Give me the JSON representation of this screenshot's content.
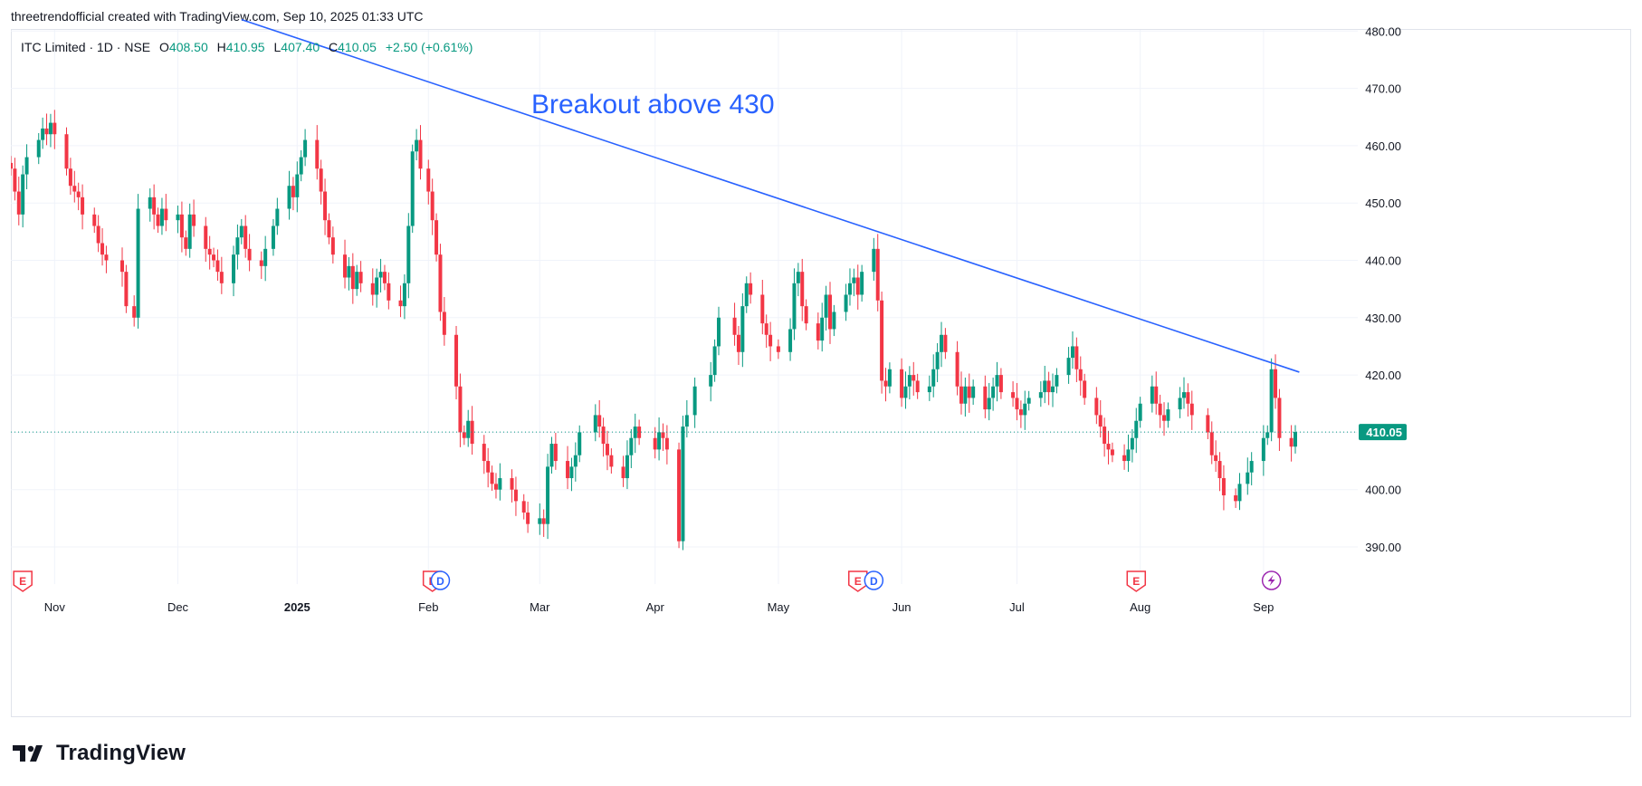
{
  "attribution": "threetrendofficial created with TradingView.com, Sep 10, 2025 01:33 UTC",
  "legend": {
    "symbol": "ITC Limited · 1D · NSE",
    "open_label": "O",
    "open": "408.50",
    "high_label": "H",
    "high": "410.95",
    "low_label": "L",
    "low": "407.40",
    "close_label": "C",
    "close": "410.05",
    "change": "+2.50 (+0.61%)"
  },
  "annotation": "Breakout above 430",
  "price_badge": "410.05",
  "logo_text": "TradingView",
  "colors": {
    "up": "#089981",
    "down": "#f23645",
    "trendline": "#2962ff",
    "text": "#131722",
    "grid": "#f0f3fa",
    "earnings": "#f23645",
    "dividend": "#2962ff",
    "split": "#9c27b0"
  },
  "chart_data": {
    "type": "candlestick",
    "ylim": [
      385,
      481
    ],
    "y_ticks": [
      "390.00",
      "400.00",
      "410.00",
      "420.00",
      "430.00",
      "440.00",
      "450.00",
      "460.00",
      "470.00",
      "480.00"
    ],
    "x_tick_labels": [
      {
        "label": "Nov",
        "date": "2024-11-01"
      },
      {
        "label": "Dec",
        "date": "2024-12-02"
      },
      {
        "label": "2025",
        "date": "2025-01-01",
        "bold": true
      },
      {
        "label": "Feb",
        "date": "2025-02-03"
      },
      {
        "label": "Mar",
        "date": "2025-03-03"
      },
      {
        "label": "Apr",
        "date": "2025-04-01"
      },
      {
        "label": "May",
        "date": "2025-05-02"
      },
      {
        "label": "Jun",
        "date": "2025-06-02"
      },
      {
        "label": "Jul",
        "date": "2025-07-01"
      },
      {
        "label": "Aug",
        "date": "2025-08-01"
      },
      {
        "label": "Sep",
        "date": "2025-09-01"
      }
    ],
    "close_series": [
      [
        "2024-10-21",
        456
      ],
      [
        "2024-10-22",
        452
      ],
      [
        "2024-10-23",
        448
      ],
      [
        "2024-10-24",
        455
      ],
      [
        "2024-10-25",
        458
      ],
      [
        "2024-10-28",
        461
      ],
      [
        "2024-10-29",
        463
      ],
      [
        "2024-10-30",
        462
      ],
      [
        "2024-10-31",
        464
      ],
      [
        "2024-11-01",
        462
      ],
      [
        "2024-11-04",
        456
      ],
      [
        "2024-11-05",
        453
      ],
      [
        "2024-11-06",
        452
      ],
      [
        "2024-11-07",
        451
      ],
      [
        "2024-11-08",
        448
      ],
      [
        "2024-11-11",
        446
      ],
      [
        "2024-11-12",
        443
      ],
      [
        "2024-11-13",
        441
      ],
      [
        "2024-11-14",
        440
      ],
      [
        "2024-11-18",
        438
      ],
      [
        "2024-11-19",
        432
      ],
      [
        "2024-11-21",
        430
      ],
      [
        "2024-11-22",
        449
      ],
      [
        "2024-11-25",
        451
      ],
      [
        "2024-11-26",
        448
      ],
      [
        "2024-11-27",
        446
      ],
      [
        "2024-11-28",
        449
      ],
      [
        "2024-11-29",
        447
      ],
      [
        "2024-12-02",
        448
      ],
      [
        "2024-12-03",
        444
      ],
      [
        "2024-12-04",
        442
      ],
      [
        "2024-12-05",
        448
      ],
      [
        "2024-12-06",
        446
      ],
      [
        "2024-12-09",
        442
      ],
      [
        "2024-12-10",
        441
      ],
      [
        "2024-12-11",
        440
      ],
      [
        "2024-12-12",
        438
      ],
      [
        "2024-12-13",
        436
      ],
      [
        "2024-12-16",
        441
      ],
      [
        "2024-12-17",
        444
      ],
      [
        "2024-12-18",
        446
      ],
      [
        "2024-12-19",
        442
      ],
      [
        "2024-12-20",
        440
      ],
      [
        "2024-12-23",
        439
      ],
      [
        "2024-12-24",
        442
      ],
      [
        "2024-12-26",
        446
      ],
      [
        "2024-12-27",
        449
      ],
      [
        "2024-12-30",
        453
      ],
      [
        "2024-12-31",
        451
      ],
      [
        "2025-01-01",
        455
      ],
      [
        "2025-01-02",
        458
      ],
      [
        "2025-01-03",
        461
      ],
      [
        "2025-01-06",
        456
      ],
      [
        "2025-01-07",
        452
      ],
      [
        "2025-01-08",
        447
      ],
      [
        "2025-01-09",
        444
      ],
      [
        "2025-01-10",
        441
      ],
      [
        "2025-01-13",
        437
      ],
      [
        "2025-01-14",
        439
      ],
      [
        "2025-01-15",
        435
      ],
      [
        "2025-01-16",
        438
      ],
      [
        "2025-01-17",
        436
      ],
      [
        "2025-01-20",
        434
      ],
      [
        "2025-01-21",
        437
      ],
      [
        "2025-01-22",
        438
      ],
      [
        "2025-01-23",
        436
      ],
      [
        "2025-01-24",
        433
      ],
      [
        "2025-01-27",
        432
      ],
      [
        "2025-01-28",
        436
      ],
      [
        "2025-01-29",
        446
      ],
      [
        "2025-01-30",
        459
      ],
      [
        "2025-01-31",
        461
      ],
      [
        "2025-02-01",
        456
      ],
      [
        "2025-02-03",
        452
      ],
      [
        "2025-02-04",
        447
      ],
      [
        "2025-02-05",
        441
      ],
      [
        "2025-02-06",
        431
      ],
      [
        "2025-02-07",
        427
      ],
      [
        "2025-02-10",
        418
      ],
      [
        "2025-02-11",
        410
      ],
      [
        "2025-02-12",
        409
      ],
      [
        "2025-02-13",
        412
      ],
      [
        "2025-02-14",
        408
      ],
      [
        "2025-02-17",
        405
      ],
      [
        "2025-02-18",
        403
      ],
      [
        "2025-02-19",
        401
      ],
      [
        "2025-02-20",
        400
      ],
      [
        "2025-02-21",
        402
      ],
      [
        "2025-02-24",
        400
      ],
      [
        "2025-02-25",
        398
      ],
      [
        "2025-02-27",
        396
      ],
      [
        "2025-02-28",
        394
      ],
      [
        "2025-03-03",
        395
      ],
      [
        "2025-03-04",
        394
      ],
      [
        "2025-03-05",
        404
      ],
      [
        "2025-03-06",
        408
      ],
      [
        "2025-03-07",
        405
      ],
      [
        "2025-03-10",
        402
      ],
      [
        "2025-03-11",
        404
      ],
      [
        "2025-03-12",
        406
      ],
      [
        "2025-03-13",
        410
      ],
      [
        "2025-03-17",
        413
      ],
      [
        "2025-03-18",
        411
      ],
      [
        "2025-03-19",
        408
      ],
      [
        "2025-03-20",
        406
      ],
      [
        "2025-03-21",
        404
      ],
      [
        "2025-03-24",
        402
      ],
      [
        "2025-03-25",
        406
      ],
      [
        "2025-03-26",
        409
      ],
      [
        "2025-03-27",
        411
      ],
      [
        "2025-03-28",
        409
      ],
      [
        "2025-04-01",
        407
      ],
      [
        "2025-04-02",
        410
      ],
      [
        "2025-04-03",
        409
      ],
      [
        "2025-04-04",
        407
      ],
      [
        "2025-04-07",
        391
      ],
      [
        "2025-04-08",
        411
      ],
      [
        "2025-04-09",
        413
      ],
      [
        "2025-04-11",
        418
      ],
      [
        "2025-04-15",
        420
      ],
      [
        "2025-04-16",
        425
      ],
      [
        "2025-04-17",
        430
      ],
      [
        "2025-04-21",
        427
      ],
      [
        "2025-04-22",
        424
      ],
      [
        "2025-04-23",
        432
      ],
      [
        "2025-04-24",
        436
      ],
      [
        "2025-04-25",
        434
      ],
      [
        "2025-04-28",
        429
      ],
      [
        "2025-04-29",
        427
      ],
      [
        "2025-04-30",
        425
      ],
      [
        "2025-05-02",
        424
      ],
      [
        "2025-05-05",
        428
      ],
      [
        "2025-05-06",
        436
      ],
      [
        "2025-05-07",
        438
      ],
      [
        "2025-05-08",
        432
      ],
      [
        "2025-05-09",
        429
      ],
      [
        "2025-05-12",
        426
      ],
      [
        "2025-05-13",
        430
      ],
      [
        "2025-05-14",
        434
      ],
      [
        "2025-05-15",
        428
      ],
      [
        "2025-05-16",
        431
      ],
      [
        "2025-05-19",
        434
      ],
      [
        "2025-05-20",
        436
      ],
      [
        "2025-05-21",
        437
      ],
      [
        "2025-05-22",
        434
      ],
      [
        "2025-05-23",
        438
      ],
      [
        "2025-05-26",
        442
      ],
      [
        "2025-05-27",
        433
      ],
      [
        "2025-05-28",
        419
      ],
      [
        "2025-05-29",
        418
      ],
      [
        "2025-05-30",
        421
      ],
      [
        "2025-06-02",
        416
      ],
      [
        "2025-06-03",
        418
      ],
      [
        "2025-06-04",
        420
      ],
      [
        "2025-06-05",
        419
      ],
      [
        "2025-06-06",
        417
      ],
      [
        "2025-06-09",
        418
      ],
      [
        "2025-06-10",
        421
      ],
      [
        "2025-06-11",
        424
      ],
      [
        "2025-06-12",
        427
      ],
      [
        "2025-06-13",
        424
      ],
      [
        "2025-06-16",
        418
      ],
      [
        "2025-06-17",
        415
      ],
      [
        "2025-06-18",
        418
      ],
      [
        "2025-06-19",
        416
      ],
      [
        "2025-06-20",
        418
      ],
      [
        "2025-06-23",
        414
      ],
      [
        "2025-06-24",
        416
      ],
      [
        "2025-06-25",
        418
      ],
      [
        "2025-06-26",
        420
      ],
      [
        "2025-06-27",
        417
      ],
      [
        "2025-06-30",
        416
      ],
      [
        "2025-07-01",
        414
      ],
      [
        "2025-07-02",
        413
      ],
      [
        "2025-07-03",
        415
      ],
      [
        "2025-07-04",
        416
      ],
      [
        "2025-07-07",
        417
      ],
      [
        "2025-07-08",
        419
      ],
      [
        "2025-07-09",
        417
      ],
      [
        "2025-07-10",
        418
      ],
      [
        "2025-07-11",
        420
      ],
      [
        "2025-07-14",
        423
      ],
      [
        "2025-07-15",
        425
      ],
      [
        "2025-07-16",
        421
      ],
      [
        "2025-07-17",
        419
      ],
      [
        "2025-07-18",
        416
      ],
      [
        "2025-07-21",
        413
      ],
      [
        "2025-07-22",
        411
      ],
      [
        "2025-07-23",
        408
      ],
      [
        "2025-07-24",
        407
      ],
      [
        "2025-07-25",
        406
      ],
      [
        "2025-07-28",
        405
      ],
      [
        "2025-07-29",
        407
      ],
      [
        "2025-07-30",
        409
      ],
      [
        "2025-07-31",
        412
      ],
      [
        "2025-08-01",
        415
      ],
      [
        "2025-08-04",
        418
      ],
      [
        "2025-08-05",
        415
      ],
      [
        "2025-08-06",
        413
      ],
      [
        "2025-08-07",
        412
      ],
      [
        "2025-08-08",
        414
      ],
      [
        "2025-08-11",
        416
      ],
      [
        "2025-08-12",
        417
      ],
      [
        "2025-08-13",
        415
      ],
      [
        "2025-08-14",
        413
      ],
      [
        "2025-08-18",
        410
      ],
      [
        "2025-08-19",
        406
      ],
      [
        "2025-08-20",
        405
      ],
      [
        "2025-08-21",
        402
      ],
      [
        "2025-08-22",
        399
      ],
      [
        "2025-08-25",
        398
      ],
      [
        "2025-08-26",
        401
      ],
      [
        "2025-08-28",
        403
      ],
      [
        "2025-08-29",
        405
      ],
      [
        "2025-09-01",
        409
      ],
      [
        "2025-09-02",
        410
      ],
      [
        "2025-09-03",
        421
      ],
      [
        "2025-09-04",
        416
      ],
      [
        "2025-09-05",
        409
      ],
      [
        "2025-09-08",
        407.5
      ],
      [
        "2025-09-09",
        410.05
      ]
    ],
    "trendline": {
      "start": [
        "2024-12-18",
        482
      ],
      "end": [
        "2025-09-10",
        420.5
      ],
      "color": "#2962ff"
    },
    "event_markers": [
      {
        "type": "E",
        "date": "2024-10-24"
      },
      {
        "type": "E",
        "date": "2025-02-04"
      },
      {
        "type": "D",
        "date": "2025-02-06"
      },
      {
        "type": "E",
        "date": "2025-05-22"
      },
      {
        "type": "D",
        "date": "2025-05-26"
      },
      {
        "type": "E",
        "date": "2025-07-31"
      },
      {
        "type": "flash",
        "date": "2025-09-03"
      }
    ],
    "current_price": 410.05
  }
}
